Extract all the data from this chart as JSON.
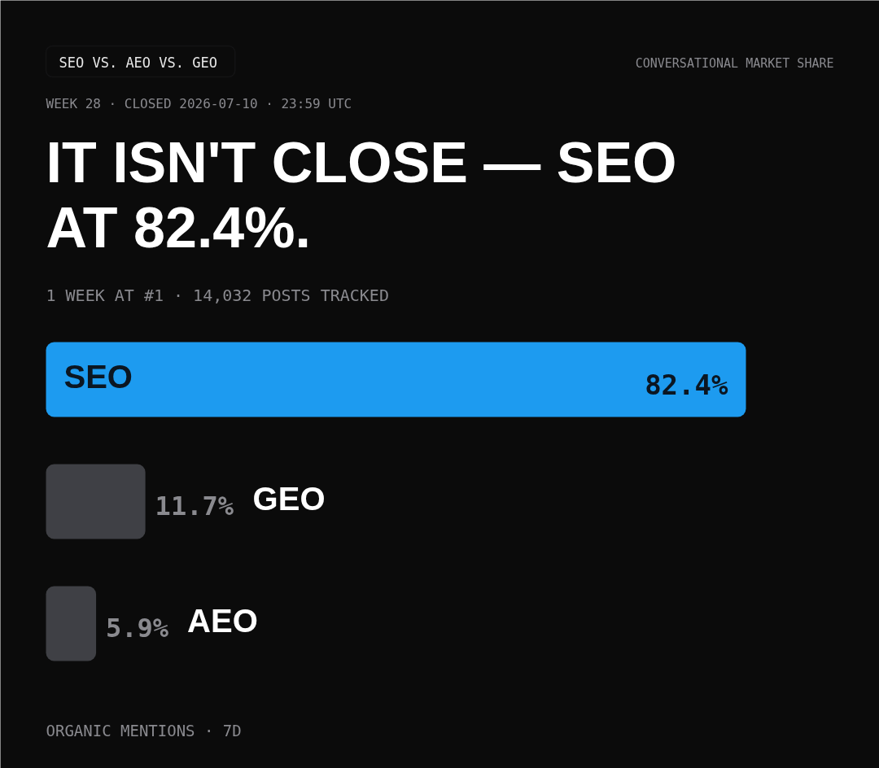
{
  "chart_data": {
    "type": "bar",
    "orientation": "horizontal",
    "title": "IT ISN'T CLOSE — SEO AT 82.4%.",
    "subtitle": "WEEK 28 · CLOSED 2026-07-10 · 23:59 UTC",
    "categories": [
      "SEO",
      "GEO",
      "AEO"
    ],
    "values": [
      82.4,
      11.7,
      5.9
    ],
    "colors": [
      "#1d9bf0",
      "#3f4045",
      "#3f4045"
    ],
    "value_labels": [
      "82.4%",
      "11.7%",
      "5.9%"
    ],
    "annotations": [
      "SEO VS. AEO VS. GEO",
      "CONVERSATIONAL MARKET SHARE",
      "1 WEEK AT #1 · 14,032 POSTS TRACKED",
      "ORGANIC MENTIONS · 7D"
    ]
  }
}
